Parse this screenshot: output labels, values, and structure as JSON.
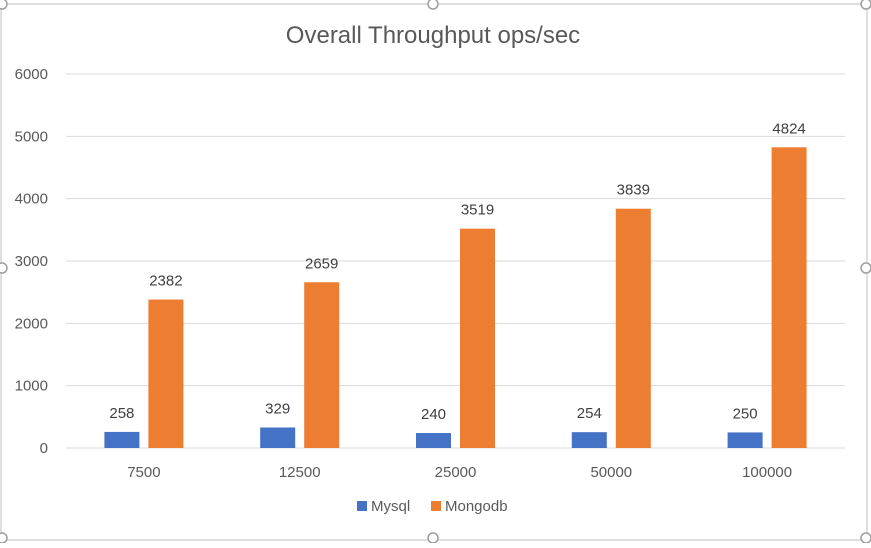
{
  "chart_data": {
    "type": "bar",
    "title": "Overall Throughput ops/sec",
    "categories": [
      "7500",
      "12500",
      "25000",
      "50000",
      "100000"
    ],
    "series": [
      {
        "name": "Mysql",
        "color": "#4472C4",
        "values": [
          258,
          329,
          240,
          254,
          250
        ]
      },
      {
        "name": "Mongodb",
        "color": "#ED7D31",
        "values": [
          2382,
          2659,
          3519,
          3839,
          4824
        ]
      }
    ],
    "ylim": [
      0,
      6000
    ],
    "yticks": [
      "0",
      "1000",
      "2000",
      "3000",
      "4000",
      "5000",
      "6000"
    ],
    "grid": true,
    "legend_position": "bottom",
    "data_labels": true,
    "colors": {
      "gridline": "#D9D9D9",
      "text": "#595959",
      "title": "#595959"
    }
  }
}
